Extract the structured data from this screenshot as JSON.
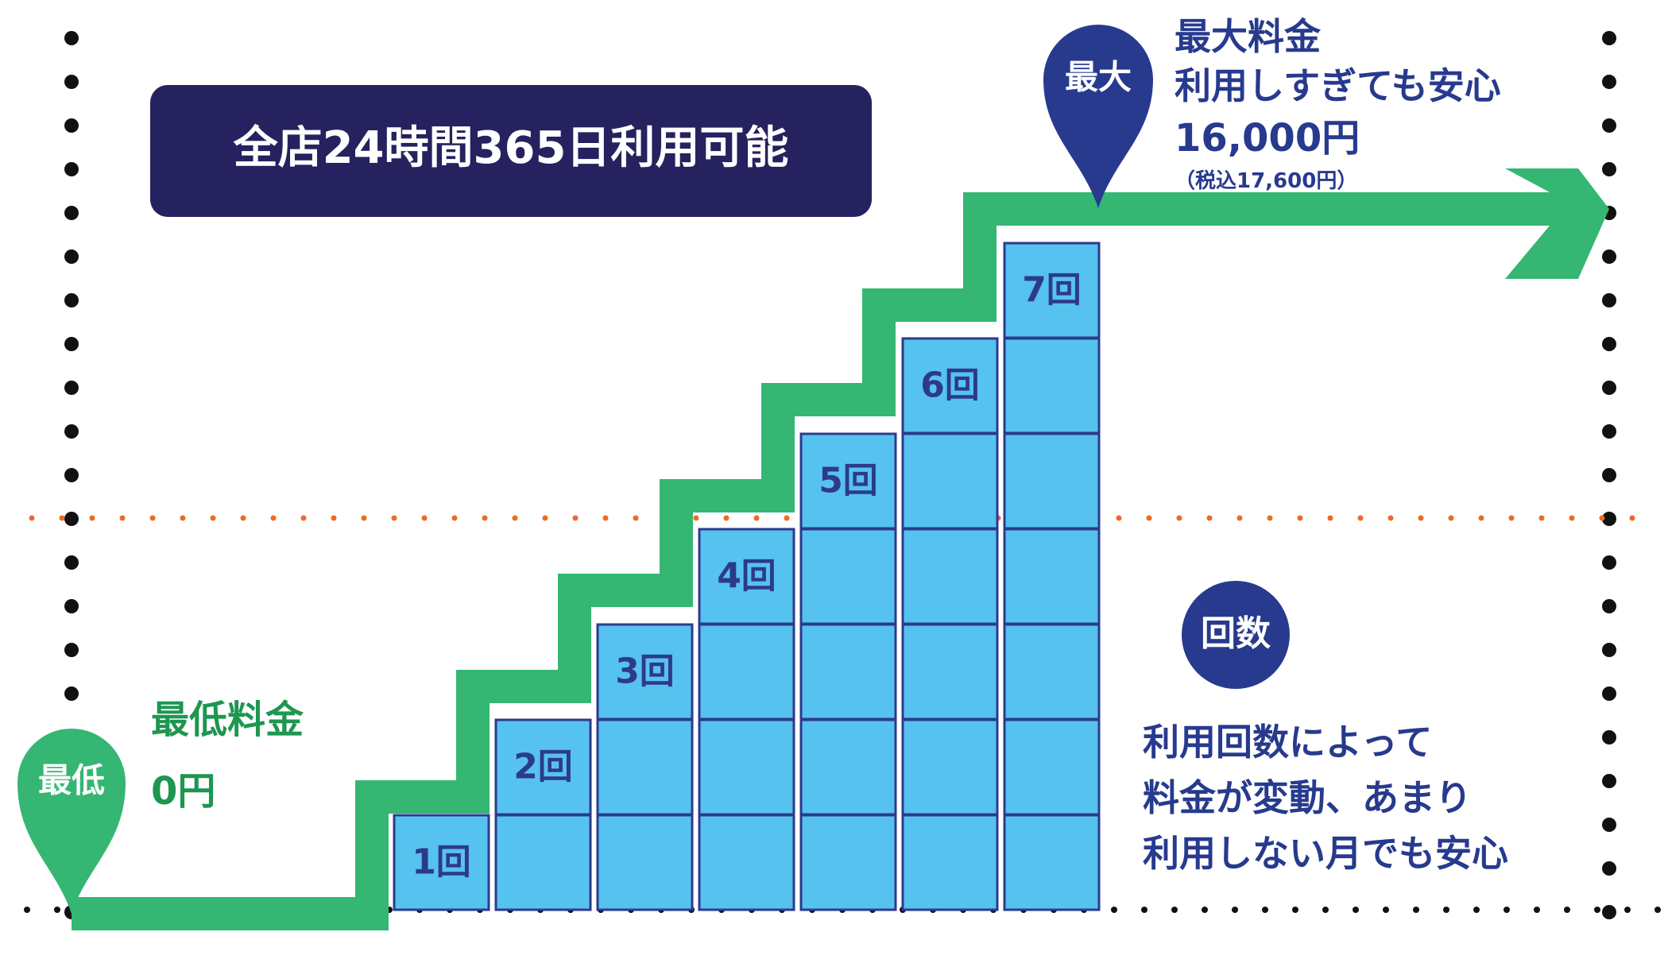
{
  "colors": {
    "green": "#35B673",
    "green_text": "#1E9650",
    "navy": "#26215F",
    "blue_pin": "#273A8E",
    "cell_fill": "#56C2EF",
    "cell_border": "#2D3A8C",
    "dot_black": "#111111",
    "dot_orange": "#EE6A2A"
  },
  "header_badge": {
    "text": "全店24時間365日利用可能"
  },
  "min_pin": {
    "label": "最低",
    "title": "最低料金",
    "price": "0円"
  },
  "max_pin": {
    "label": "最大",
    "title": "最大料金",
    "subtitle": "利用しすぎても安心",
    "price": "16,000円",
    "price_tax": "（税込17,600円）"
  },
  "step_labels": [
    "1回",
    "2回",
    "3回",
    "4回",
    "5回",
    "6回",
    "7回"
  ],
  "count_badge": {
    "text": "回数"
  },
  "description_lines": [
    "利用回数によって",
    "料金が変動、あまり",
    "利用しない月でも安心"
  ]
}
